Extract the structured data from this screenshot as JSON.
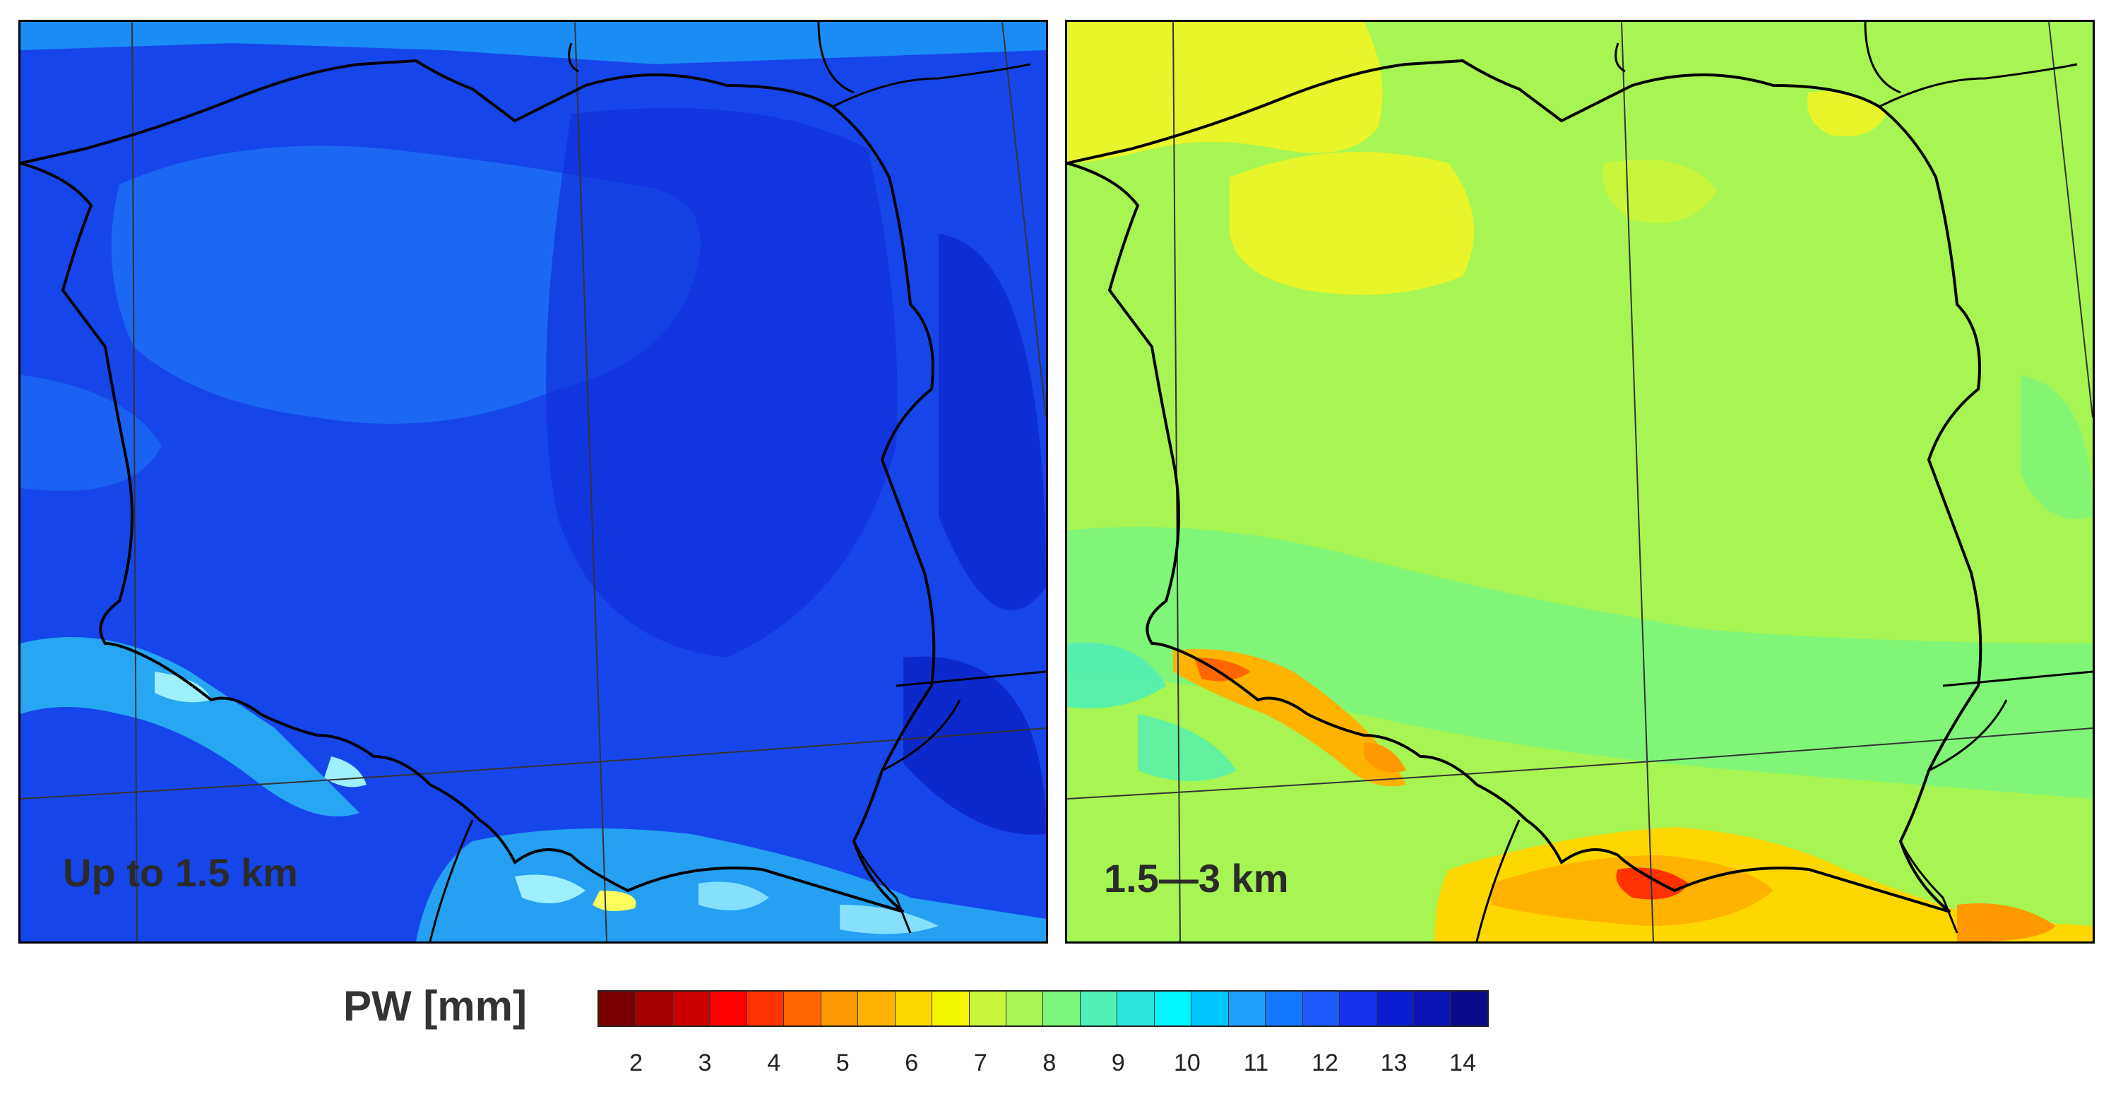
{
  "panels": [
    {
      "id": "left",
      "label": "Up to 1.5 km",
      "base_color": "#1542ea"
    },
    {
      "id": "right",
      "label": "1.5—3 km",
      "base_color": "#a6f553"
    }
  ],
  "colorbar": {
    "title": "PW [mm]",
    "colors": [
      "#7a0000",
      "#a50000",
      "#cc0000",
      "#ff0000",
      "#ff3300",
      "#ff6600",
      "#ff9900",
      "#ffb300",
      "#ffd700",
      "#f5f500",
      "#c8f53c",
      "#a6f553",
      "#7cf57c",
      "#50f0b4",
      "#28e6dc",
      "#00f5ff",
      "#00c8ff",
      "#1ea0ff",
      "#1478ff",
      "#1e5aff",
      "#1432f0",
      "#0a1ed2",
      "#0a14b4",
      "#0a0a8c"
    ],
    "ticks": [
      "2",
      "3",
      "4",
      "5",
      "6",
      "7",
      "8",
      "9",
      "10",
      "11",
      "12",
      "13",
      "14"
    ]
  }
}
